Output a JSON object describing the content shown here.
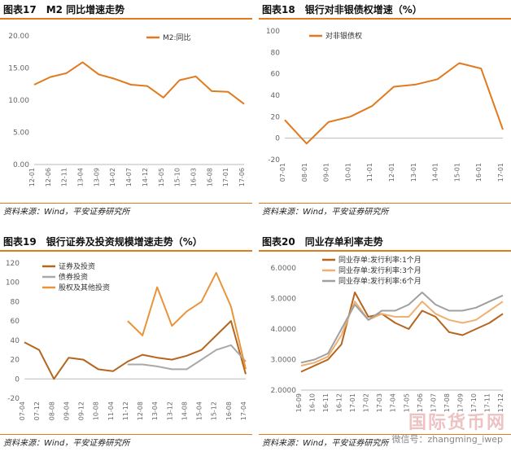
{
  "panels": [
    {
      "title": "图表17　M2 同比增速走势",
      "source": "资料来源：Wind，平安证券研究所"
    },
    {
      "title": "图表18　银行对非银债权增速（%）",
      "source": "资料来源：Wind，平安证券研究所"
    },
    {
      "title": "图表19　银行证券及投资规模增速走势（%）",
      "source": "资料来源：Wind，平安证券研究所"
    },
    {
      "title": "图表20　同业存单利率走势",
      "source": "资料来源：Wind，平安证券研究所"
    }
  ],
  "watermark": "国际货币网",
  "wechat": "微信号：zhangming_iwep",
  "chart_data": [
    {
      "type": "line",
      "x": [
        "12-01",
        "12-06",
        "12-11",
        "13-04",
        "13-09",
        "14-02",
        "14-07",
        "14-12",
        "15-05",
        "15-10",
        "16-03",
        "16-08",
        "17-01",
        "17-06"
      ],
      "series": [
        {
          "name": "M2:同比",
          "color": "#e07a1f",
          "values": [
            12.4,
            13.6,
            14.2,
            15.9,
            14.0,
            13.3,
            12.4,
            12.2,
            10.4,
            13.1,
            13.7,
            11.4,
            11.3,
            9.4
          ]
        }
      ],
      "ylim": [
        0,
        20
      ],
      "yticks": [
        "0.00",
        "5.00",
        "10.00",
        "15.00",
        "20.00"
      ],
      "legend": "top-right"
    },
    {
      "type": "line",
      "x": [
        "07-01",
        "08-01",
        "09-01",
        "10-01",
        "11-01",
        "12-01",
        "13-01",
        "14-01",
        "15-01",
        "16-01",
        "17-01"
      ],
      "series": [
        {
          "name": "对非银债权",
          "color": "#e07a1f",
          "values": [
            17,
            -5,
            15,
            20,
            30,
            48,
            50,
            55,
            70,
            65,
            8
          ]
        }
      ],
      "ylim": [
        -20,
        100
      ],
      "yticks": [
        "-20",
        "0",
        "20",
        "40",
        "60",
        "80",
        "100"
      ],
      "legend": "top-left"
    },
    {
      "type": "line",
      "x": [
        "07-04",
        "07-12",
        "08-08",
        "09-04",
        "09-12",
        "10-08",
        "11-04",
        "11-12",
        "12-08",
        "13-04",
        "13-12",
        "14-08",
        "15-04",
        "15-12",
        "16-08",
        "17-04"
      ],
      "series": [
        {
          "name": "证券及投资",
          "color": "#b5651d",
          "values": [
            38,
            30,
            0,
            22,
            20,
            10,
            8,
            18,
            25,
            22,
            20,
            24,
            30,
            45,
            60,
            5
          ]
        },
        {
          "name": "债券投资",
          "color": "#a9a9a9",
          "values": [
            null,
            null,
            null,
            null,
            null,
            null,
            null,
            15,
            15,
            13,
            10,
            10,
            20,
            30,
            35,
            18
          ]
        },
        {
          "name": "股权及其他投资",
          "color": "#e8943a",
          "values": [
            null,
            null,
            null,
            null,
            null,
            null,
            null,
            60,
            45,
            95,
            55,
            70,
            80,
            110,
            75,
            10
          ]
        }
      ],
      "ylim": [
        -20,
        120
      ],
      "yticks": [
        "-20",
        "0",
        "20",
        "40",
        "60",
        "80",
        "100",
        "120"
      ],
      "legend": "top-left"
    },
    {
      "type": "line",
      "x": [
        "16-09",
        "16-10",
        "16-11",
        "16-12",
        "17-01",
        "17-02",
        "17-03",
        "17-04",
        "17-05",
        "17-06",
        "17-07",
        "17-08",
        "17-09",
        "17-10",
        "17-11",
        "17-12"
      ],
      "series": [
        {
          "name": "同业存单:发行利率:1个月",
          "color": "#b5651d",
          "values": [
            2.6,
            2.8,
            3.0,
            3.5,
            5.2,
            4.4,
            4.5,
            4.2,
            4.0,
            4.6,
            4.4,
            3.9,
            3.8,
            4.0,
            4.2,
            4.5
          ]
        },
        {
          "name": "同业存单:发行利率:3个月",
          "color": "#f0b070",
          "values": [
            2.8,
            2.9,
            3.1,
            3.8,
            4.9,
            4.3,
            4.5,
            4.4,
            4.4,
            4.9,
            4.5,
            4.3,
            4.2,
            4.3,
            4.6,
            4.9
          ]
        },
        {
          "name": "同业存单:发行利率:6个月",
          "color": "#a0a0a0",
          "values": [
            2.9,
            3.0,
            3.2,
            4.0,
            4.8,
            4.3,
            4.6,
            4.6,
            4.8,
            5.2,
            4.8,
            4.6,
            4.6,
            4.7,
            4.9,
            5.1
          ]
        }
      ],
      "ylim": [
        2,
        6
      ],
      "yticks": [
        "2.0000",
        "3.0000",
        "4.0000",
        "5.0000",
        "6.0000"
      ],
      "legend": "top-left"
    }
  ]
}
